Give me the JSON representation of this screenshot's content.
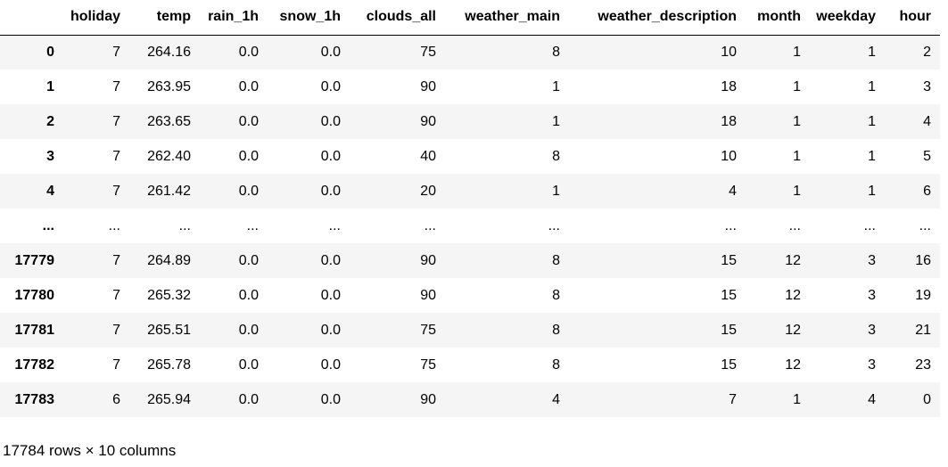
{
  "table": {
    "index_header": "",
    "columns": [
      "holiday",
      "temp",
      "rain_1h",
      "snow_1h",
      "clouds_all",
      "weather_main",
      "weather_description",
      "month",
      "weekday",
      "hour"
    ],
    "rows": [
      {
        "index": "0",
        "cells": [
          "7",
          "264.16",
          "0.0",
          "0.0",
          "75",
          "8",
          "10",
          "1",
          "1",
          "2"
        ]
      },
      {
        "index": "1",
        "cells": [
          "7",
          "263.95",
          "0.0",
          "0.0",
          "90",
          "1",
          "18",
          "1",
          "1",
          "3"
        ]
      },
      {
        "index": "2",
        "cells": [
          "7",
          "263.65",
          "0.0",
          "0.0",
          "90",
          "1",
          "18",
          "1",
          "1",
          "4"
        ]
      },
      {
        "index": "3",
        "cells": [
          "7",
          "262.40",
          "0.0",
          "0.0",
          "40",
          "8",
          "10",
          "1",
          "1",
          "5"
        ]
      },
      {
        "index": "4",
        "cells": [
          "7",
          "261.42",
          "0.0",
          "0.0",
          "20",
          "1",
          "4",
          "1",
          "1",
          "6"
        ]
      },
      {
        "index": "...",
        "cells": [
          "...",
          "...",
          "...",
          "...",
          "...",
          "...",
          "...",
          "...",
          "...",
          "..."
        ]
      },
      {
        "index": "17779",
        "cells": [
          "7",
          "264.89",
          "0.0",
          "0.0",
          "90",
          "8",
          "15",
          "12",
          "3",
          "16"
        ]
      },
      {
        "index": "17780",
        "cells": [
          "7",
          "265.32",
          "0.0",
          "0.0",
          "90",
          "8",
          "15",
          "12",
          "3",
          "19"
        ]
      },
      {
        "index": "17781",
        "cells": [
          "7",
          "265.51",
          "0.0",
          "0.0",
          "75",
          "8",
          "15",
          "12",
          "3",
          "21"
        ]
      },
      {
        "index": "17782",
        "cells": [
          "7",
          "265.78",
          "0.0",
          "0.0",
          "75",
          "8",
          "15",
          "12",
          "3",
          "23"
        ]
      },
      {
        "index": "17783",
        "cells": [
          "6",
          "265.94",
          "0.0",
          "0.0",
          "90",
          "4",
          "7",
          "1",
          "4",
          "0"
        ]
      }
    ]
  },
  "shape_note": "17784 rows × 10 columns"
}
